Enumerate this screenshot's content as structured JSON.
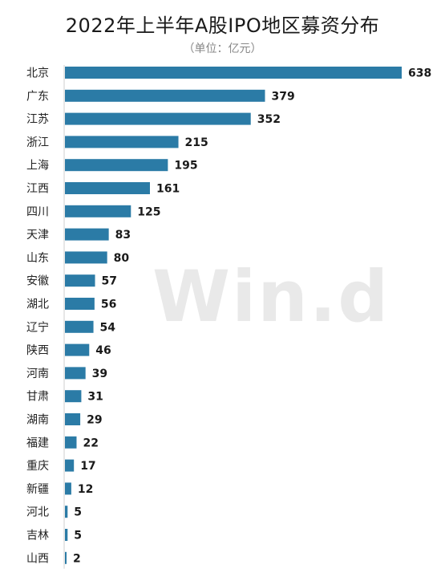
{
  "chart_data": {
    "type": "bar",
    "orientation": "horizontal",
    "title": "2022年上半年A股IPO地区募资分布",
    "subtitle": "（单位：亿元）",
    "categories": [
      "北京",
      "广东",
      "江苏",
      "浙江",
      "上海",
      "江西",
      "四川",
      "天津",
      "山东",
      "安徽",
      "湖北",
      "辽宁",
      "陕西",
      "河南",
      "甘肃",
      "湖南",
      "福建",
      "重庆",
      "新疆",
      "河北",
      "吉林",
      "山西"
    ],
    "values": [
      638,
      379,
      352,
      215,
      195,
      161,
      125,
      83,
      80,
      57,
      56,
      54,
      46,
      39,
      31,
      29,
      22,
      17,
      12,
      5,
      5,
      2
    ],
    "xlim": [
      0,
      638
    ],
    "bar_color": "#2b7ba6",
    "data_labels": true,
    "grid": false
  },
  "watermark": "Win.d"
}
